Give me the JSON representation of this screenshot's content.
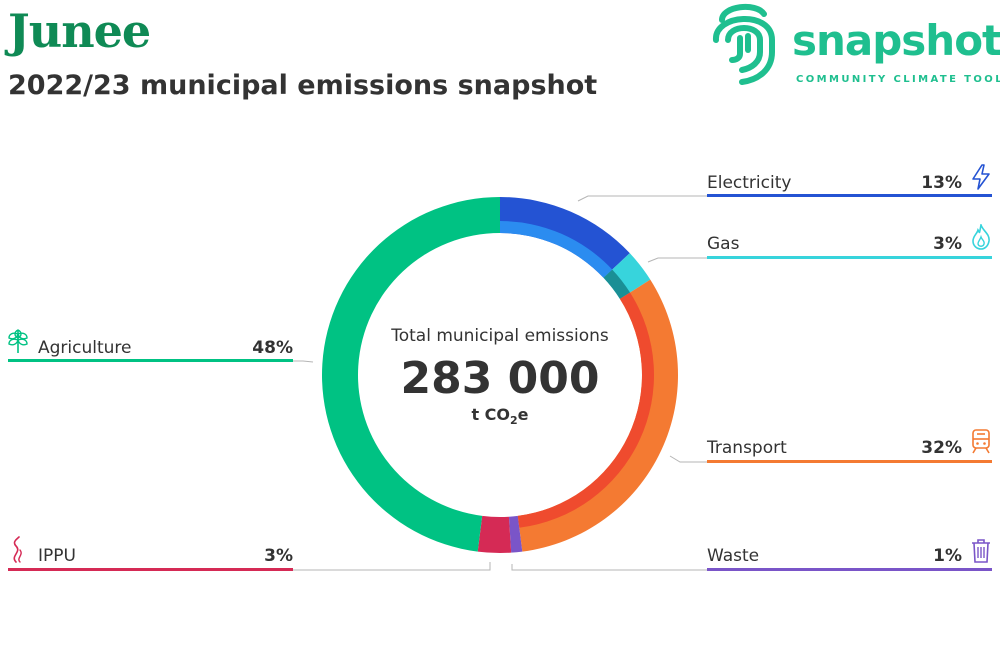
{
  "header": {
    "title": "Junee",
    "subtitle": "2022/23 municipal emissions snapshot"
  },
  "logo": {
    "word": "snapshot",
    "tagline": "COMMUNITY CLIMATE TOOL",
    "color": "#1fbf8f"
  },
  "center": {
    "label": "Total municipal emissions",
    "value": "283 000",
    "unit_prefix": "t CO",
    "unit_sub": "2",
    "unit_suffix": "e"
  },
  "chart_data": {
    "type": "pie",
    "title": "2022/23 municipal emissions snapshot",
    "total": "283 000 t CO2e",
    "categories": [
      "Electricity",
      "Gas",
      "Transport",
      "Waste",
      "IPPU",
      "Agriculture"
    ],
    "values": [
      13,
      3,
      32,
      1,
      3,
      48
    ],
    "labels": [
      "13%",
      "3%",
      "32%",
      "1%",
      "3%",
      "48%"
    ],
    "colors": [
      "#2453d3",
      "#37d4dc",
      "#f47a32",
      "#7a55c8",
      "#d52a55",
      "#00c283"
    ],
    "icons": [
      "lightning-icon",
      "flame-icon",
      "train-icon",
      "bin-icon",
      "factory-emissions-icon",
      "wheat-icon"
    ]
  }
}
